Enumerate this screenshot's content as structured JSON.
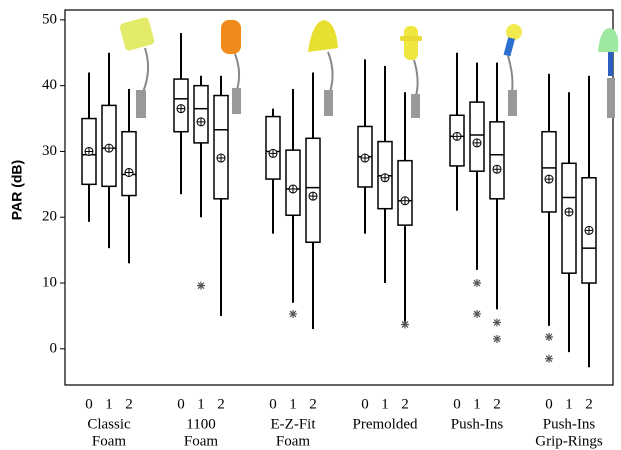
{
  "chart_data": {
    "type": "box",
    "y_label": "PAR (dB)",
    "ylim": [
      -5.5,
      51.5
    ],
    "yticks": [
      0,
      10,
      20,
      30,
      40,
      50
    ],
    "box_color": "#000000",
    "outlier_color": "#555555",
    "groups": [
      {
        "label_lines": [
          "Classic",
          "Foam"
        ],
        "boxes": [
          {
            "category": "0",
            "whisker_low": 19.3,
            "q1": 25,
            "median": 29.5,
            "q3": 35,
            "whisker_high": 42,
            "mean": 30,
            "outliers": []
          },
          {
            "category": "1",
            "whisker_low": 15.3,
            "q1": 24.7,
            "median": 30.5,
            "q3": 37,
            "whisker_high": 45,
            "mean": 30.5,
            "outliers": []
          },
          {
            "category": "2",
            "whisker_low": 13,
            "q1": 23.3,
            "median": 26.5,
            "q3": 33,
            "whisker_high": 39.5,
            "mean": 26.8,
            "outliers": []
          }
        ]
      },
      {
        "label_lines": [
          "1100",
          "Foam"
        ],
        "boxes": [
          {
            "category": "0",
            "whisker_low": 23.5,
            "q1": 33,
            "median": 38,
            "q3": 41,
            "whisker_high": 48,
            "mean": 36.5,
            "outliers": []
          },
          {
            "category": "1",
            "whisker_low": 20,
            "q1": 31.3,
            "median": 36.5,
            "q3": 40,
            "whisker_high": 41.5,
            "mean": 34.5,
            "outliers": [
              9.6
            ]
          },
          {
            "category": "2",
            "whisker_low": 5,
            "q1": 22.8,
            "median": 33.3,
            "q3": 38.5,
            "whisker_high": 41.5,
            "mean": 29,
            "outliers": []
          }
        ]
      },
      {
        "label_lines": [
          "E-Z-Fit",
          "Foam"
        ],
        "boxes": [
          {
            "category": "0",
            "whisker_low": 17.5,
            "q1": 25.8,
            "median": 30,
            "q3": 35.3,
            "whisker_high": 36.5,
            "mean": 29.7,
            "outliers": []
          },
          {
            "category": "1",
            "whisker_low": 7,
            "q1": 20.3,
            "median": 24.3,
            "q3": 30.2,
            "whisker_high": 39.5,
            "mean": 24.3,
            "outliers": [
              5.3
            ]
          },
          {
            "category": "2",
            "whisker_low": 3,
            "q1": 16.2,
            "median": 24.5,
            "q3": 32,
            "whisker_high": 42,
            "mean": 23.2,
            "outliers": []
          }
        ]
      },
      {
        "label_lines": [
          "Premolded"
        ],
        "boxes": [
          {
            "category": "0",
            "whisker_low": 17.5,
            "q1": 24.6,
            "median": 29.2,
            "q3": 33.8,
            "whisker_high": 44,
            "mean": 29,
            "outliers": []
          },
          {
            "category": "1",
            "whisker_low": 10,
            "q1": 21.3,
            "median": 26.3,
            "q3": 31.5,
            "whisker_high": 43,
            "mean": 26,
            "outliers": []
          },
          {
            "category": "2",
            "whisker_low": 4,
            "q1": 18.8,
            "median": 22.5,
            "q3": 28.6,
            "whisker_high": 39,
            "mean": 22.5,
            "outliers": [
              3.7
            ]
          }
        ]
      },
      {
        "label_lines": [
          "Push-Ins"
        ],
        "boxes": [
          {
            "category": "0",
            "whisker_low": 21,
            "q1": 27.8,
            "median": 32.3,
            "q3": 35.5,
            "whisker_high": 45,
            "mean": 32.3,
            "outliers": []
          },
          {
            "category": "1",
            "whisker_low": 12,
            "q1": 27,
            "median": 32.5,
            "q3": 37.5,
            "whisker_high": 43.5,
            "mean": 31.3,
            "outliers": [
              10,
              5.3
            ]
          },
          {
            "category": "2",
            "whisker_low": 6,
            "q1": 22.8,
            "median": 29.5,
            "q3": 34.5,
            "whisker_high": 43.5,
            "mean": 27.3,
            "outliers": [
              4,
              1.5
            ]
          }
        ]
      },
      {
        "label_lines": [
          "Push-Ins",
          "Grip-Rings"
        ],
        "boxes": [
          {
            "category": "0",
            "whisker_low": 3.5,
            "q1": 20.8,
            "median": 27.5,
            "q3": 33,
            "whisker_high": 41.8,
            "mean": 25.8,
            "outliers": [
              1.8,
              -1.5
            ]
          },
          {
            "category": "1",
            "whisker_low": -0.5,
            "q1": 11.5,
            "median": 23,
            "q3": 28.2,
            "whisker_high": 39,
            "mean": 20.8,
            "outliers": []
          },
          {
            "category": "2",
            "whisker_low": -2.8,
            "q1": 10,
            "median": 15.3,
            "q3": 26,
            "whisker_high": 41.5,
            "mean": 18,
            "outliers": []
          }
        ]
      }
    ]
  }
}
